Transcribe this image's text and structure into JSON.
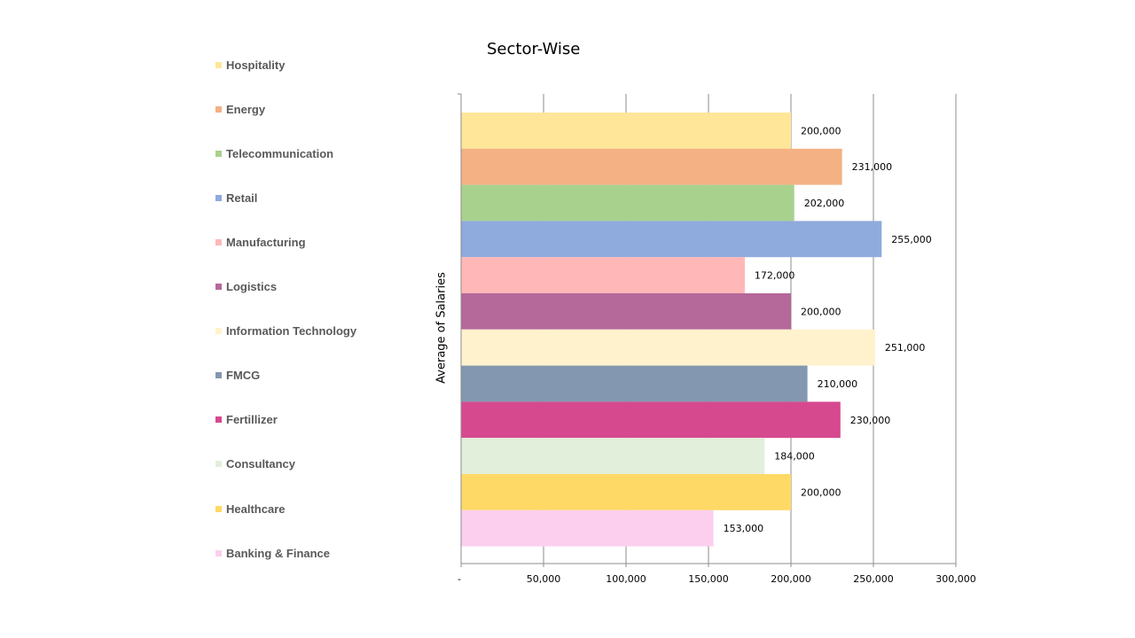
{
  "chart_data": {
    "type": "bar",
    "orientation": "horizontal",
    "title": "Sector-Wise",
    "ylabel": "Average of Salaries",
    "xlabel": "",
    "xlim": [
      0,
      300000
    ],
    "x_ticks": [
      "-",
      "50,000",
      "100,000",
      "150,000",
      "200,000",
      "250,000",
      "300,000"
    ],
    "grid": "vertical",
    "legend_position": "left",
    "categories": [
      "Hospitality",
      "Energy",
      "Telecommunication",
      "Retail",
      "Manufacturing",
      "Logistics",
      "Information Technology",
      "FMCG",
      "Fertillizer",
      "Consultancy",
      "Healthcare",
      "Banking & Finance"
    ],
    "values": [
      200000,
      231000,
      202000,
      255000,
      172000,
      200000,
      251000,
      210000,
      230000,
      184000,
      200000,
      153000
    ],
    "data_labels": [
      "200,000",
      "231,000",
      "202,000",
      "255,000",
      "172,000",
      "200,000",
      "251,000",
      "210,000",
      "230,000",
      "184,000",
      "200,000",
      "153,000"
    ],
    "colors": [
      "#FFE699",
      "#F4B183",
      "#A9D18E",
      "#8FAADC",
      "#FFB7B7",
      "#B5689A",
      "#FFF2CC",
      "#8497B0",
      "#D6498F",
      "#E2EFDA",
      "#FFD966",
      "#FCCFEF"
    ]
  }
}
